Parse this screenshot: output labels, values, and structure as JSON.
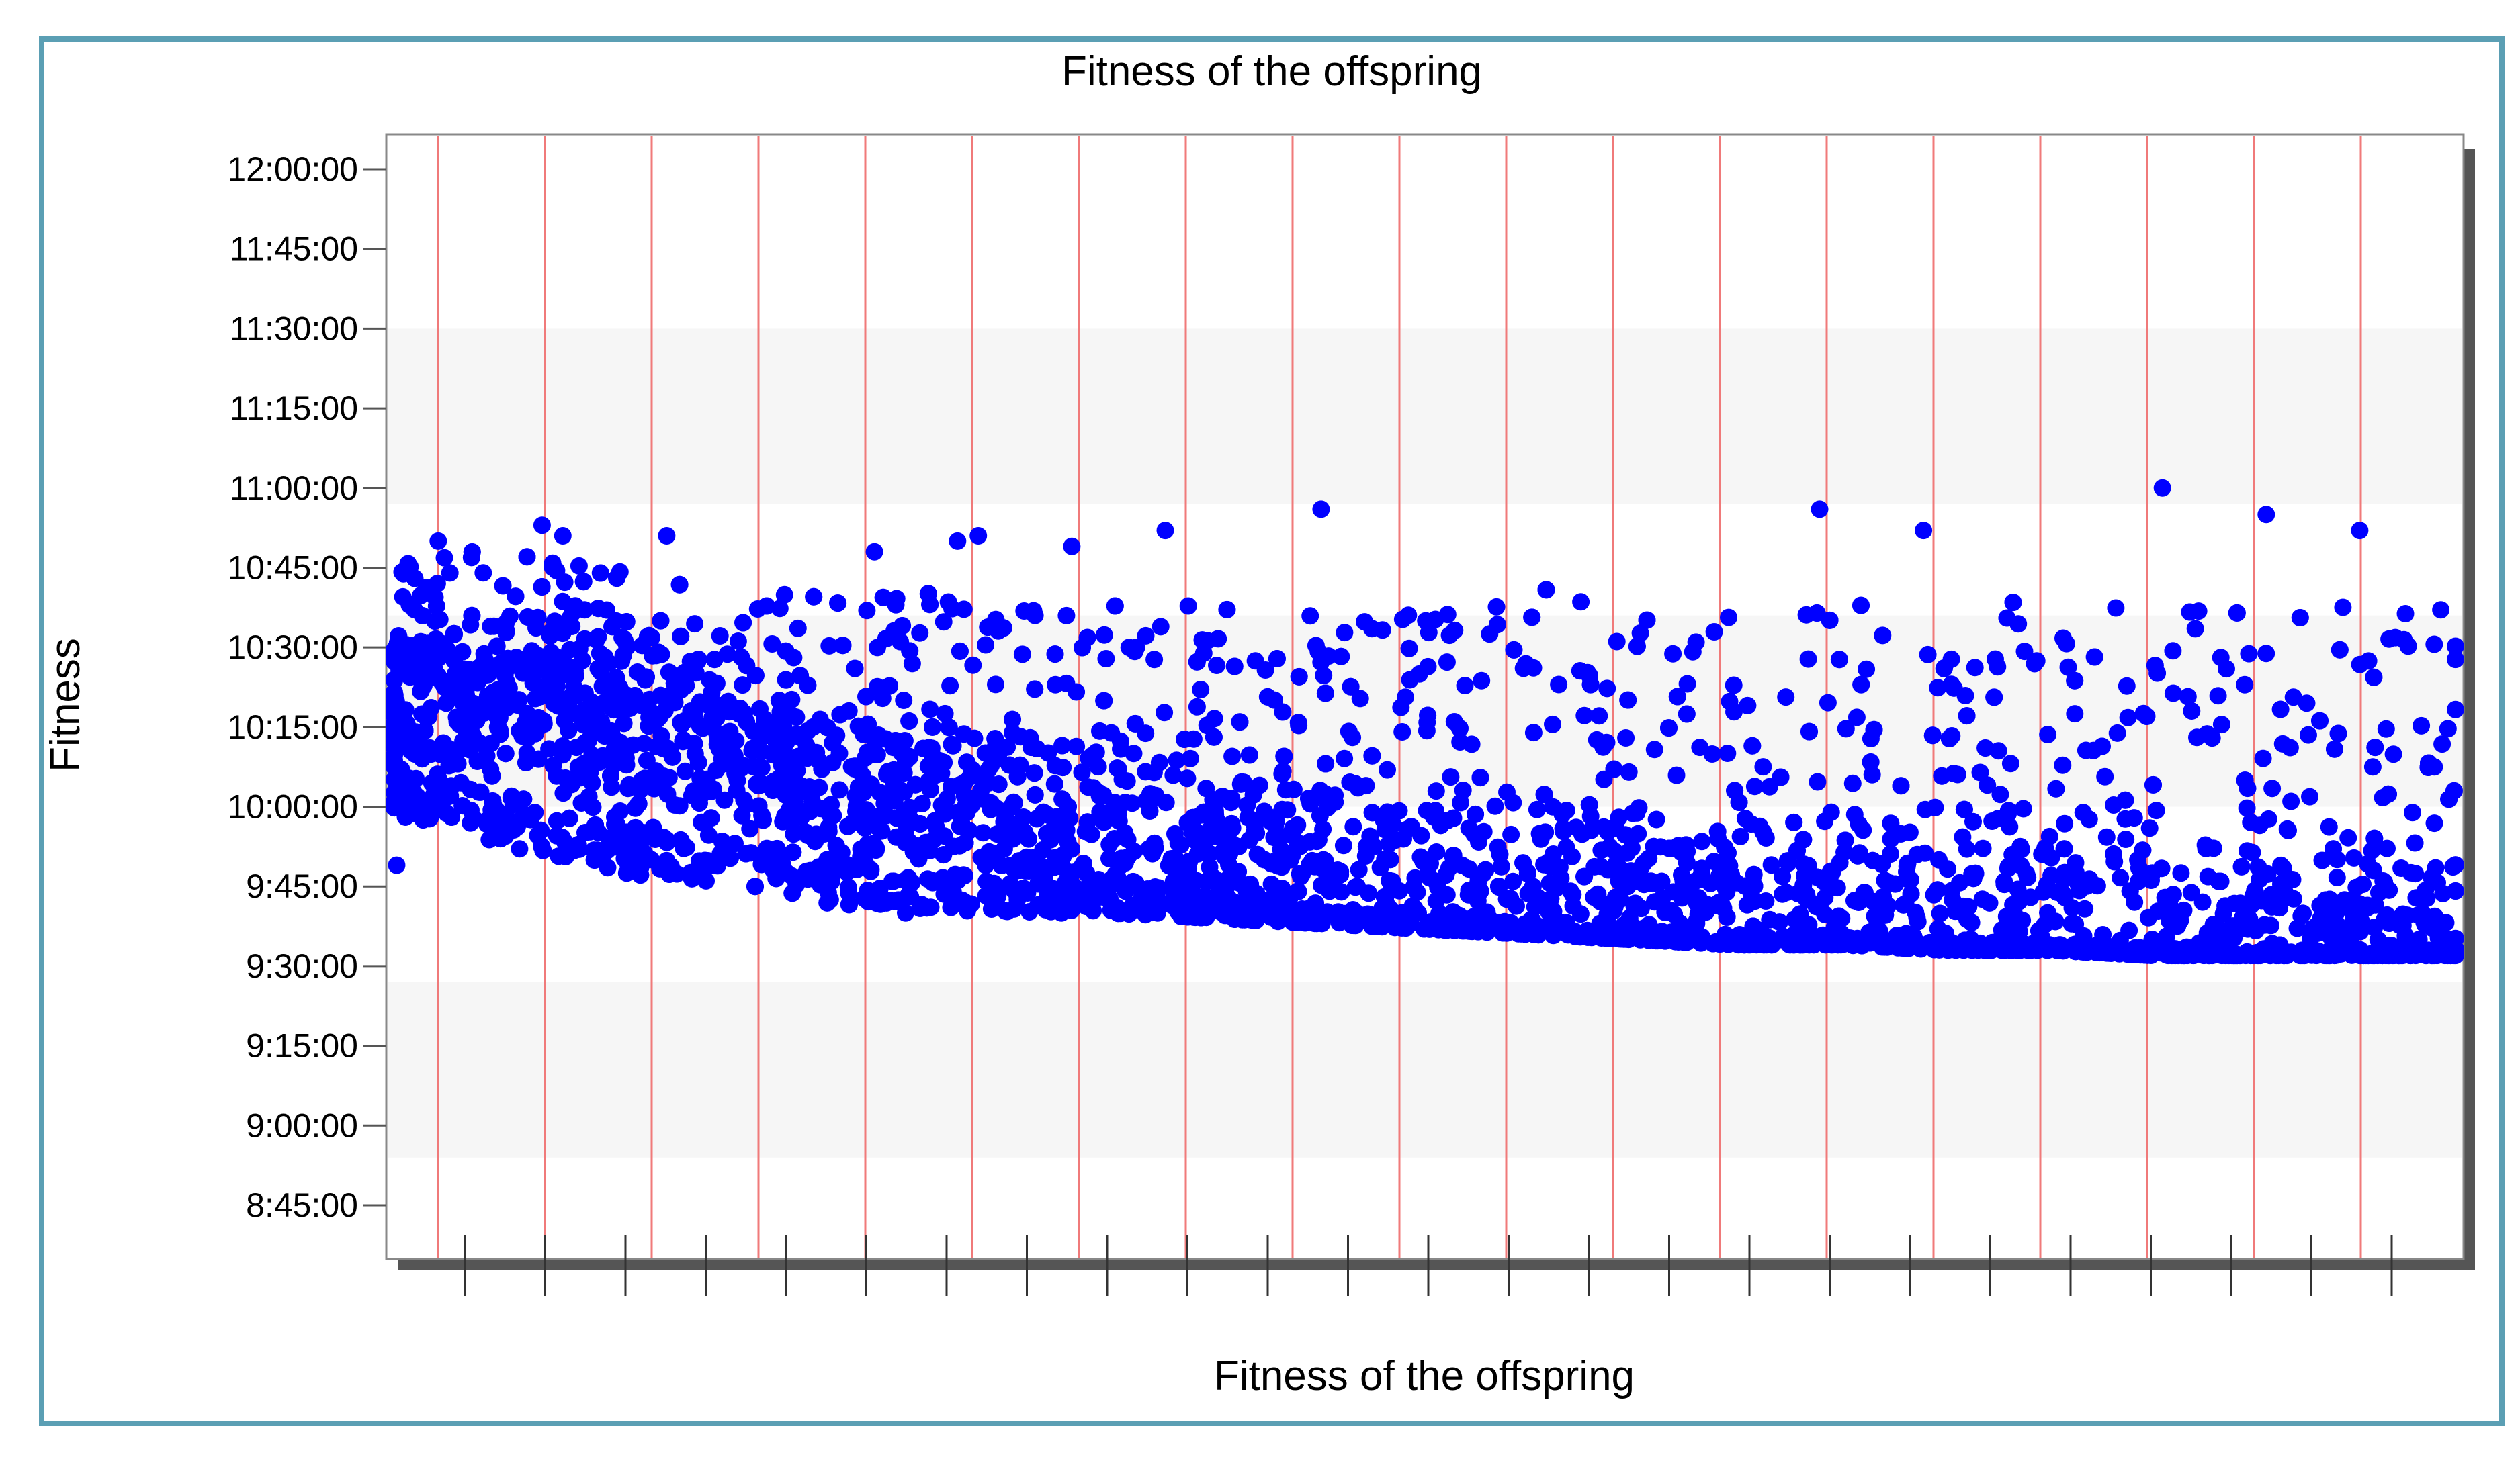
{
  "chart_data": {
    "type": "scatter",
    "title": "Fitness of the offspring",
    "xlabel": "Fitness of the offspring",
    "ylabel": "Fitness",
    "y_unit": "time of day (h:mm:ss)",
    "ylim": [
      "8:45:00",
      "12:00:00"
    ],
    "yticks": [
      "12:00:00",
      "11:45:00",
      "11:30:00",
      "11:15:00",
      "11:00:00",
      "10:45:00",
      "10:30:00",
      "10:15:00",
      "10:00:00",
      "9:45:00",
      "9:30:00",
      "9:15:00",
      "9:00:00",
      "8:45:00"
    ],
    "xlim": [
      0,
      100
    ],
    "grid": "vertical red lines; alternating light bands",
    "legend": "none",
    "series": [
      {
        "color": "#0000ff",
        "trend_start": [
          "10:20:00",
          "10:22:00",
          "10:21:00",
          "10:18:00",
          "10:15:00",
          "10:10:00",
          "10:06:00",
          "10:02:00",
          "9:58:00",
          "9:54:00",
          "9:51:00",
          "9:48:00",
          "9:46:00",
          "9:44:00",
          "9:42:00",
          "9:40:00",
          "9:39:00",
          "9:38:00",
          "9:37:00",
          "9:36:00",
          "9:35:00",
          "9:35:00"
        ],
        "x": [
          0,
          3,
          6,
          9,
          12,
          16,
          20,
          25,
          30,
          35,
          40,
          45,
          50,
          55,
          60,
          65,
          70,
          75,
          80,
          85,
          90,
          100
        ],
        "y_min": [
          "9:58:00",
          "9:57:00",
          "9:52:00",
          "9:50:00",
          "9:47:00",
          "9:45:00",
          "9:42:00",
          "9:41:00",
          "9:40:00",
          "9:40:00",
          "9:39:00",
          "9:38:00",
          "9:37:00",
          "9:36:00",
          "9:35:00",
          "9:34:00",
          "9:34:00",
          "9:33:00",
          "9:33:00",
          "9:32:00",
          "9:32:00",
          "9:32:00"
        ],
        "y_max": [
          "10:45:00",
          "10:48:00",
          "10:48:00",
          "10:46:00",
          "10:44:00",
          "10:42:00",
          "10:40:00",
          "10:40:00",
          "10:42:00",
          "10:40:00",
          "10:38:00",
          "10:40:00",
          "10:40:00",
          "10:42:00",
          "10:38:00",
          "10:36:00",
          "10:38:00",
          "10:38:00",
          "10:40:00",
          "10:38:00",
          "10:38:00",
          "10:38:00"
        ],
        "outliers": [
          {
            "x": 2.5,
            "y": "10:50:00"
          },
          {
            "x": 7.5,
            "y": "10:53:00"
          },
          {
            "x": 8.5,
            "y": "10:51:00"
          },
          {
            "x": 13.5,
            "y": "10:51:00"
          },
          {
            "x": 23.5,
            "y": "10:48:00"
          },
          {
            "x": 27.5,
            "y": "10:50:00"
          },
          {
            "x": 28.5,
            "y": "10:51:00"
          },
          {
            "x": 33,
            "y": "10:49:00"
          },
          {
            "x": 37.5,
            "y": "10:52:00"
          },
          {
            "x": 45,
            "y": "10:56:00"
          },
          {
            "x": 69,
            "y": "10:56:00"
          },
          {
            "x": 74,
            "y": "10:52:00"
          },
          {
            "x": 85.5,
            "y": "11:00:00"
          },
          {
            "x": 90.5,
            "y": "10:55:00"
          },
          {
            "x": 95,
            "y": "10:52:00"
          },
          {
            "x": 0.5,
            "y": "9:49:00"
          },
          {
            "x": 25,
            "y": "9:40:00"
          },
          {
            "x": 32.5,
            "y": "9:40:00"
          }
        ]
      }
    ]
  }
}
